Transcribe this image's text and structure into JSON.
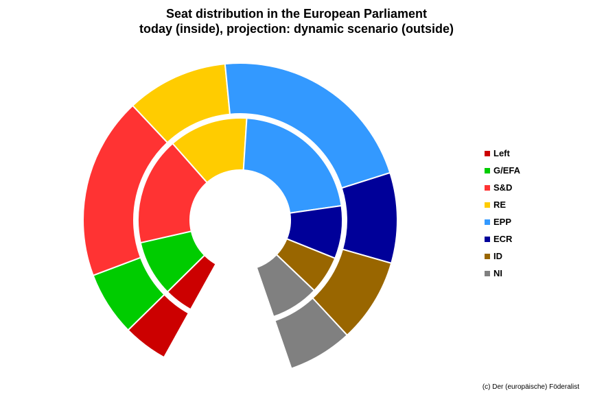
{
  "chart_data": {
    "type": "pie",
    "subtype": "nested-donut",
    "title": "Seat distribution in the European Parliament",
    "subtitle": "today (inside), projection: dynamic scenario (outside)",
    "legend_position": "right",
    "categories": [
      "Left",
      "G/EFA",
      "S&D",
      "RE",
      "EPP",
      "ECR",
      "ID",
      "NI"
    ],
    "colors": [
      "#cc0000",
      "#00cc00",
      "#ff3333",
      "#ffcc00",
      "#3399ff",
      "#000099",
      "#996600",
      "#808080"
    ],
    "series": [
      {
        "ring": "inner",
        "values": [
          37,
          72,
          139,
          102,
          177,
          68,
          49,
          62
        ]
      },
      {
        "ring": "outer",
        "values": [
          36,
          52,
          147,
          82,
          170,
          73,
          68,
          52
        ]
      }
    ]
  },
  "credit": "(c) Der (europäische) Föderalist"
}
